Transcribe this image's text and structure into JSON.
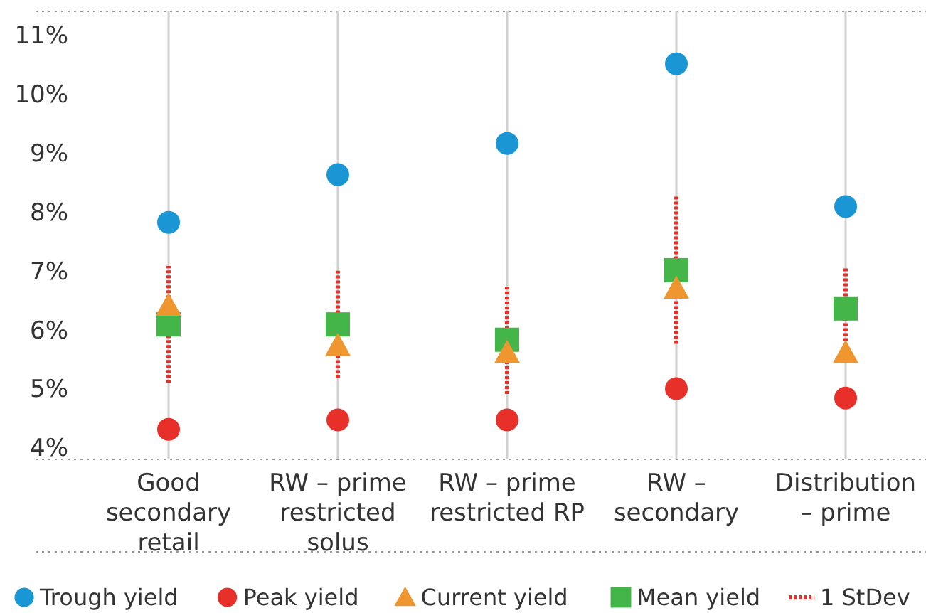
{
  "chart_data": {
    "type": "scatter",
    "categories": [
      "Good secondary retail",
      "RW – prime restricted solus",
      "RW – prime restricted RP",
      "RW – secondary",
      "Distribution – prime"
    ],
    "ylim": [
      3.8,
      11.4
    ],
    "yticks": [
      {
        "value": 4,
        "label": "4%"
      },
      {
        "value": 5,
        "label": "5%"
      },
      {
        "value": 6,
        "label": "6%"
      },
      {
        "value": 7,
        "label": "7%"
      },
      {
        "value": 8,
        "label": "8%"
      },
      {
        "value": 9,
        "label": "9%"
      },
      {
        "value": 10,
        "label": "10%"
      },
      {
        "value": 11,
        "label": "11%"
      }
    ],
    "grid": "x",
    "legend": "bottom",
    "series": [
      {
        "name": "Trough yield",
        "color": "#1b96d4",
        "marker": "circle",
        "values": [
          7.82,
          8.63,
          9.16,
          10.51,
          8.09
        ]
      },
      {
        "name": "Peak yield",
        "color": "#e8302a",
        "marker": "circle",
        "values": [
          4.31,
          4.47,
          4.47,
          5.0,
          4.84
        ]
      },
      {
        "name": "Current yield",
        "color": "#f0962e",
        "marker": "triangle",
        "values": [
          6.41,
          5.73,
          5.61,
          6.7,
          5.61
        ]
      },
      {
        "name": "Mean yield",
        "color": "#43b549",
        "marker": "square",
        "values": [
          6.09,
          6.09,
          5.83,
          7.01,
          6.36
        ],
        "errors": [
          [
            5.1,
            7.08
          ],
          [
            5.18,
            7.0
          ],
          [
            4.91,
            6.74
          ],
          [
            5.76,
            8.28
          ],
          [
            5.81,
            7.07
          ]
        ]
      }
    ],
    "annotations": [
      "1 StDev"
    ],
    "line_style": "dotted"
  }
}
